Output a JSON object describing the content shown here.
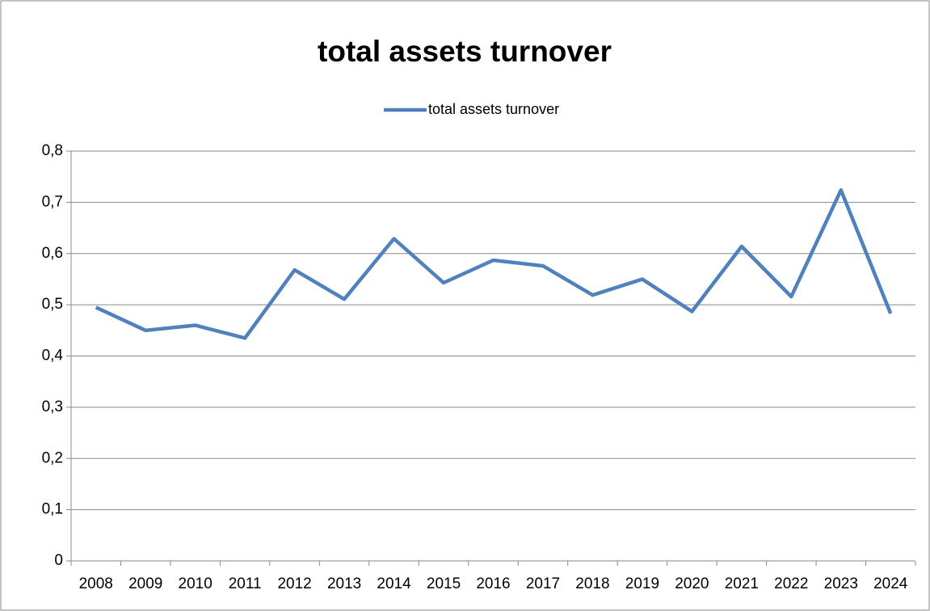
{
  "chart_data": {
    "type": "line",
    "title": "total assets turnover",
    "categories": [
      "2008",
      "2009",
      "2010",
      "2011",
      "2012",
      "2013",
      "2014",
      "2015",
      "2016",
      "2017",
      "2018",
      "2019",
      "2020",
      "2021",
      "2022",
      "2023",
      "2024"
    ],
    "series": [
      {
        "name": "total assets turnover",
        "color": "#4f81bd",
        "values": [
          0.495,
          0.45,
          0.46,
          0.435,
          0.568,
          0.511,
          0.629,
          0.543,
          0.587,
          0.576,
          0.519,
          0.55,
          0.487,
          0.614,
          0.516,
          0.724,
          0.483
        ]
      }
    ],
    "ylim": [
      0,
      0.8
    ],
    "yticks": [
      0,
      {
        "value": 0.1,
        "label": "0,1"
      },
      {
        "value": 0.2,
        "label": "0,2"
      },
      {
        "value": 0.3,
        "label": "0,3"
      },
      {
        "value": 0.4,
        "label": "0,4"
      },
      {
        "value": 0.5,
        "label": "0,5"
      },
      {
        "value": 0.6,
        "label": "0,6"
      },
      {
        "value": 0.7,
        "label": "0,7"
      },
      {
        "value": 0.8,
        "label": "0,8"
      }
    ],
    "grid": true,
    "legend": "top"
  }
}
